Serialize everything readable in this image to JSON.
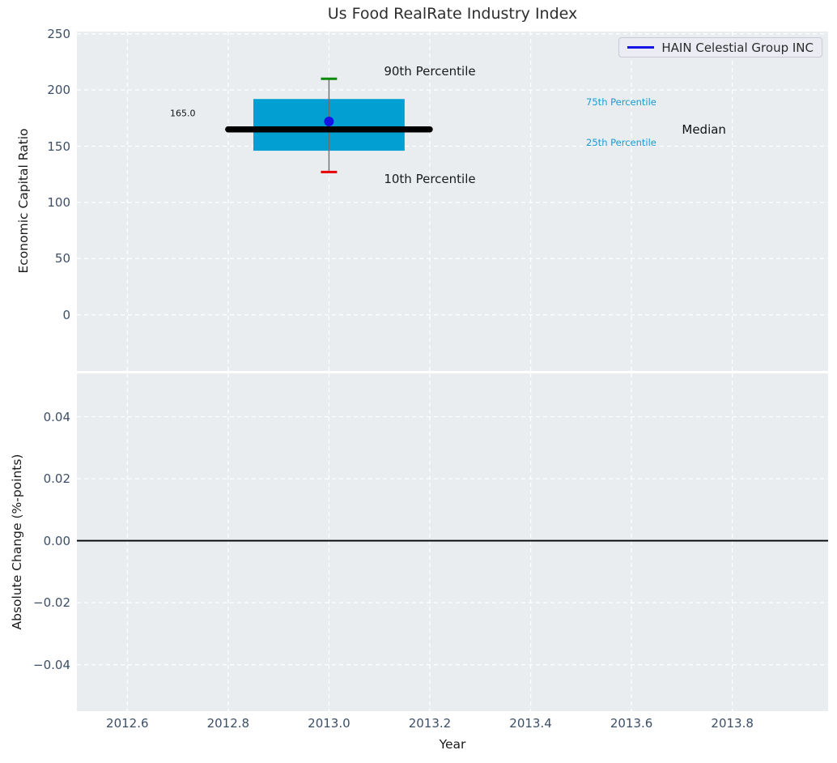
{
  "figure": {
    "title": "Us Food RealRate Industry Index",
    "background": "#ffffff",
    "panel_background": "#e9edf0",
    "grid_color": "#ffffff",
    "tick_label_color": "#3d4f66",
    "axis_label_color": "#1a1a1a",
    "title_color": "#2e2e2e"
  },
  "chart_data": [
    {
      "type": "boxplot",
      "panel": "top",
      "title": "Us Food RealRate Industry Index",
      "ylabel": "Economic Capital Ratio",
      "xlim": [
        2012.5,
        2013.99
      ],
      "ylim": [
        -50,
        252
      ],
      "xticks": [
        2012.6,
        2012.8,
        2013.0,
        2013.2,
        2013.4,
        2013.6,
        2013.8
      ],
      "yticks": [
        0,
        50,
        100,
        150,
        200,
        250
      ],
      "grid": "white-dashed",
      "box": {
        "x_center": 2013.0,
        "box_x_range": [
          2012.85,
          2013.15
        ],
        "median_x_range": [
          2012.8,
          2013.2
        ],
        "p10": 127,
        "q1": 146,
        "median": 165,
        "q3": 192,
        "p90": 210,
        "cap_half_width": 0.016,
        "box_color": "#019fd2",
        "median_color": "#000000",
        "whisker_color": "#6e6e6e",
        "p90_cap_color": "#098909",
        "p10_cap_color": "#e80202"
      },
      "company_point": {
        "x": 2013.0,
        "y": 172,
        "color": "#1414e6"
      },
      "legend": {
        "label": "HAIN Celestial Group INC",
        "line_color": "#1414e6",
        "position": "upper-right"
      },
      "annotations": [
        {
          "text": "90th Percentile",
          "x": 2013.2,
          "y": 217,
          "size": 15,
          "color": "#1a1a1a",
          "anchor": "middle"
        },
        {
          "text": "10th Percentile",
          "x": 2013.2,
          "y": 121,
          "size": 15,
          "color": "#1a1a1a",
          "anchor": "middle"
        },
        {
          "text": "75th Percentile",
          "x": 2013.51,
          "y": 189,
          "size": 11.5,
          "color": "#189bd3",
          "anchor": "start"
        },
        {
          "text": "25th Percentile",
          "x": 2013.51,
          "y": 153,
          "size": 11.5,
          "color": "#189bd3",
          "anchor": "start"
        },
        {
          "text": "Median",
          "x": 2013.7,
          "y": 165,
          "size": 15,
          "color": "#111111",
          "anchor": "start"
        },
        {
          "text": "165.0",
          "x": 2012.71,
          "y": 179,
          "size": 11,
          "color": "#111111",
          "anchor": "middle"
        }
      ]
    },
    {
      "type": "line",
      "panel": "bottom",
      "xlabel": "Year",
      "ylabel": "Absolute Change (%-points)",
      "xlim": [
        2012.5,
        2013.99
      ],
      "ylim": [
        -0.055,
        0.054
      ],
      "xticks": [
        2012.6,
        2012.8,
        2013.0,
        2013.2,
        2013.4,
        2013.6,
        2013.8
      ],
      "yticks": [
        0.04,
        0.02,
        0.0,
        -0.02,
        -0.04
      ],
      "grid": "white-dashed",
      "zero_line": {
        "y": 0.0,
        "color": "#000000"
      },
      "series": []
    }
  ]
}
